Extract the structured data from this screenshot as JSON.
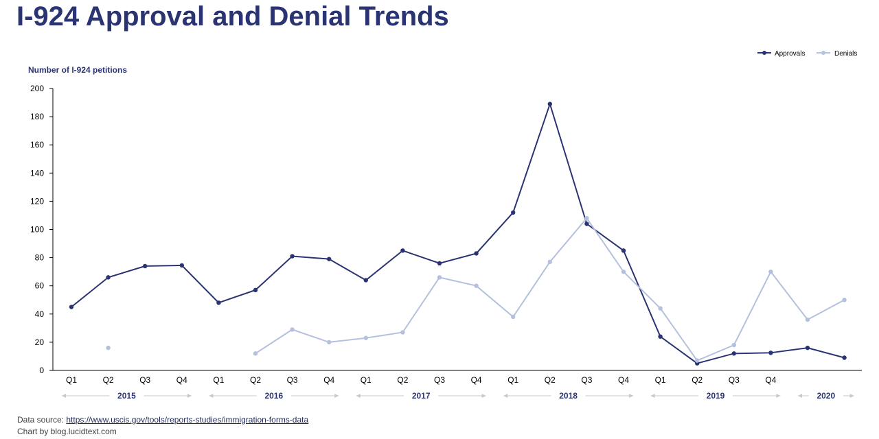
{
  "title": "I-924 Approval and Denial Trends",
  "footer": {
    "source_prefix": "Data source: ",
    "source_link": "https://www.uscis.gov/tools/reports-studies/immigration-forms-data",
    "credit": "Chart by blog.lucidtext.com"
  },
  "colors": {
    "approvals": "#2b3472",
    "denials": "#b4c0de",
    "title": "#2b3472",
    "axis": "#000000",
    "year_arrow": "#c8c8c8"
  },
  "chart_data": {
    "type": "line",
    "ylabel": "Number of I-924 petitions",
    "ylim": [
      0,
      200
    ],
    "yticks": [
      0,
      20,
      40,
      60,
      80,
      100,
      120,
      140,
      160,
      180,
      200
    ],
    "grid": false,
    "legend_position": "top-right",
    "quarter_labels": [
      "Q1",
      "Q2",
      "Q3",
      "Q4",
      "Q1",
      "Q2",
      "Q3",
      "Q4",
      "Q1",
      "Q2",
      "Q3",
      "Q4",
      "Q1",
      "Q2",
      "Q3",
      "Q4",
      "Q1",
      "Q2",
      "Q3",
      "Q4",
      "",
      ""
    ],
    "years": [
      {
        "label": "2015",
        "first": 0,
        "last": 3
      },
      {
        "label": "2016",
        "first": 4,
        "last": 7
      },
      {
        "label": "2017",
        "first": 8,
        "last": 11
      },
      {
        "label": "2018",
        "first": 12,
        "last": 15
      },
      {
        "label": "2019",
        "first": 16,
        "last": 19
      },
      {
        "label": "2020",
        "first": 20,
        "last": 21
      }
    ],
    "series": [
      {
        "name": "Approvals",
        "values": [
          45,
          66,
          74,
          74.5,
          48,
          57,
          81,
          79,
          64,
          85,
          76,
          83,
          112,
          189,
          104,
          85,
          24,
          5,
          12,
          12.5,
          16,
          9
        ]
      },
      {
        "name": "Denials",
        "values": [
          null,
          16,
          null,
          null,
          null,
          12,
          29,
          20,
          23,
          27,
          66,
          60,
          38,
          77,
          108,
          70,
          44,
          7,
          18,
          70,
          36,
          50
        ]
      }
    ]
  }
}
